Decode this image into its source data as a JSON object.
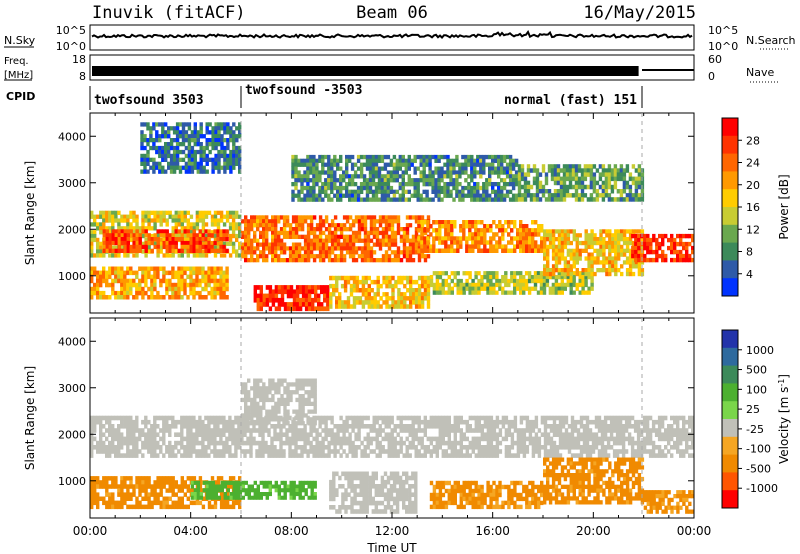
{
  "header": {
    "station": "Inuvik (fitACF)",
    "beam": "Beam 06",
    "date": "16/May/2015"
  },
  "noise_panel": {
    "left_label": "N.Sky",
    "right_label": "N.Search",
    "left_ticks": [
      "10^5",
      "10^0"
    ],
    "right_ticks": [
      "10^5",
      "10^0"
    ]
  },
  "freq_panel": {
    "left_label_1": "Freq.",
    "left_label_2": "[MHz]",
    "right_label": "Nave",
    "left_ticks": [
      "18",
      "8"
    ],
    "right_ticks": [
      "60",
      "0"
    ]
  },
  "cpid": {
    "label": "CPID",
    "segments": [
      {
        "start_hour": 0,
        "end_hour": 6,
        "text": "twofsound 3503"
      },
      {
        "start_hour": 6,
        "end_hour": 21.8,
        "text": "twofsound -3503"
      },
      {
        "start_hour": 21.8,
        "end_hour": 24,
        "text": "normal (fast) 151"
      }
    ]
  },
  "x_axis": {
    "label": "Time UT",
    "ticks": [
      "00:00",
      "04:00",
      "08:00",
      "12:00",
      "16:00",
      "20:00",
      "00:00"
    ]
  },
  "colorbars": {
    "power": {
      "label": "Power [dB]",
      "ticks": [
        "28",
        "24",
        "20",
        "16",
        "12",
        "8",
        "4"
      ],
      "colors": [
        "#ff0000",
        "#ff3300",
        "#ff6600",
        "#ff9900",
        "#ffcc00",
        "#c8cc33",
        "#6aa84f",
        "#3c8a5a",
        "#2e5aa8",
        "#0033ff"
      ]
    },
    "velocity": {
      "label": "Velocity [m s",
      "label_sup": "-1",
      "label_end": "]",
      "ticks": [
        "1000",
        "500",
        "100",
        "25",
        "-25",
        "-100",
        "-500",
        "-1000"
      ],
      "colors": [
        "#2233aa",
        "#2e6a9e",
        "#3c8a5a",
        "#4cb030",
        "#7ad64a",
        "#c0c0b8",
        "#f5a623",
        "#f08a00",
        "#ff5500",
        "#ff0000"
      ]
    }
  },
  "chart_data": [
    {
      "type": "heatmap",
      "title": "Power",
      "ylabel": "Slant Range [km]",
      "xlabel": "Time UT",
      "xlim": [
        0,
        24
      ],
      "ylim": [
        200,
        4500
      ],
      "y_ticks": [
        "4000",
        "3000",
        "2000",
        "1000"
      ],
      "colorbar": "Power [dB]",
      "blobs": [
        {
          "t0": 0.0,
          "t1": 6.0,
          "r0": 1400,
          "r1": 2400,
          "value": 16
        },
        {
          "t0": 0.5,
          "t1": 5.5,
          "r0": 1500,
          "r1": 2000,
          "value": 26
        },
        {
          "t0": 0.0,
          "t1": 5.5,
          "r0": 500,
          "r1": 1200,
          "value": 20
        },
        {
          "t0": 6.5,
          "t1": 9.5,
          "r0": 250,
          "r1": 800,
          "value": 28
        },
        {
          "t0": 6.0,
          "t1": 13.5,
          "r0": 1300,
          "r1": 2300,
          "value": 24
        },
        {
          "t0": 9.5,
          "t1": 13.5,
          "r0": 300,
          "r1": 1000,
          "value": 18
        },
        {
          "t0": 13.5,
          "t1": 20.0,
          "r0": 600,
          "r1": 1100,
          "value": 14
        },
        {
          "t0": 13.0,
          "t1": 18.0,
          "r0": 1500,
          "r1": 2200,
          "value": 22
        },
        {
          "t0": 18.0,
          "t1": 22.0,
          "r0": 1000,
          "r1": 2000,
          "value": 18
        },
        {
          "t0": 21.5,
          "t1": 24.0,
          "r0": 1300,
          "r1": 1900,
          "value": 28
        },
        {
          "t0": 2.0,
          "t1": 6.0,
          "r0": 3200,
          "r1": 4300,
          "value": 6
        },
        {
          "t0": 8.0,
          "t1": 17.0,
          "r0": 2600,
          "r1": 3600,
          "value": 8
        },
        {
          "t0": 17.0,
          "t1": 22.0,
          "r0": 2600,
          "r1": 3400,
          "value": 10
        }
      ]
    },
    {
      "type": "heatmap",
      "title": "Velocity",
      "ylabel": "Slant Range [km]",
      "xlabel": "Time UT",
      "xlim": [
        0,
        24
      ],
      "ylim": [
        200,
        4500
      ],
      "y_ticks": [
        "4000",
        "3000",
        "2000",
        "1000"
      ],
      "colorbar": "Velocity [m s-1]",
      "blobs": [
        {
          "t0": 0.0,
          "t1": 24.0,
          "r0": 1500,
          "r1": 2400,
          "value": 0
        },
        {
          "t0": 0.0,
          "t1": 6.0,
          "r0": 400,
          "r1": 1100,
          "value": -200
        },
        {
          "t0": 4.0,
          "t1": 9.0,
          "r0": 600,
          "r1": 1000,
          "value": 200
        },
        {
          "t0": 9.5,
          "t1": 13.0,
          "r0": 300,
          "r1": 1200,
          "value": 0
        },
        {
          "t0": 13.5,
          "t1": 18.0,
          "r0": 400,
          "r1": 1000,
          "value": -150
        },
        {
          "t0": 18.0,
          "t1": 22.0,
          "r0": 500,
          "r1": 1500,
          "value": -200
        },
        {
          "t0": 22.0,
          "t1": 24.0,
          "r0": 300,
          "r1": 800,
          "value": -150
        },
        {
          "t0": 6.0,
          "t1": 9.0,
          "r0": 2200,
          "r1": 3200,
          "value": 0
        }
      ]
    }
  ]
}
